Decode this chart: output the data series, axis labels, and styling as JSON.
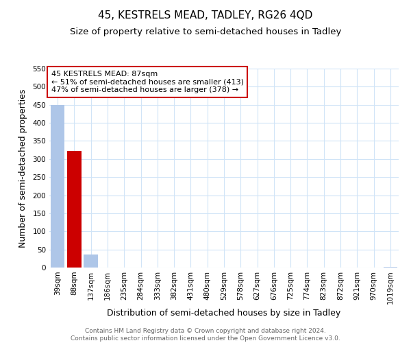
{
  "title": "45, KESTRELS MEAD, TADLEY, RG26 4QD",
  "subtitle": "Size of property relative to semi-detached houses in Tadley",
  "xlabel": "Distribution of semi-detached houses by size in Tadley",
  "ylabel": "Number of semi-detached properties",
  "bin_labels": [
    "39sqm",
    "88sqm",
    "137sqm",
    "186sqm",
    "235sqm",
    "284sqm",
    "333sqm",
    "382sqm",
    "431sqm",
    "480sqm",
    "529sqm",
    "578sqm",
    "627sqm",
    "676sqm",
    "725sqm",
    "774sqm",
    "823sqm",
    "872sqm",
    "921sqm",
    "970sqm",
    "1019sqm"
  ],
  "bar_values": [
    450,
    323,
    36,
    0,
    0,
    0,
    0,
    0,
    0,
    0,
    0,
    0,
    0,
    0,
    0,
    0,
    0,
    0,
    0,
    0,
    2
  ],
  "bar_color": "#aec6e8",
  "highlight_bar_index": 1,
  "highlight_bar_color": "#cc0000",
  "annotation_title": "45 KESTRELS MEAD: 87sqm",
  "annotation_line1": "← 51% of semi-detached houses are smaller (413)",
  "annotation_line2": "47% of semi-detached houses are larger (378) →",
  "annotation_box_color": "#ffffff",
  "annotation_box_edge": "#cc0000",
  "ylim": [
    0,
    550
  ],
  "yticks": [
    0,
    50,
    100,
    150,
    200,
    250,
    300,
    350,
    400,
    450,
    500,
    550
  ],
  "footer_line1": "Contains HM Land Registry data © Crown copyright and database right 2024.",
  "footer_line2": "Contains public sector information licensed under the Open Government Licence v3.0.",
  "bg_color": "#ffffff",
  "grid_color": "#d0e4f7",
  "title_fontsize": 11,
  "subtitle_fontsize": 9.5,
  "axis_label_fontsize": 9,
  "tick_fontsize": 7.5,
  "annotation_fontsize": 8,
  "footer_fontsize": 6.5
}
